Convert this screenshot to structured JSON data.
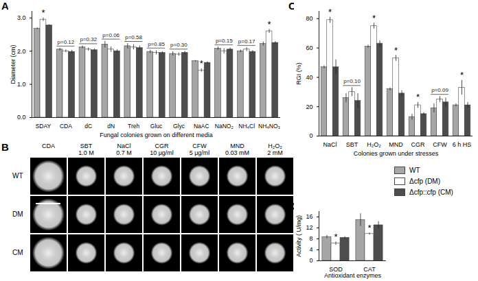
{
  "chart_data": [
    {
      "panel": "A",
      "type": "bar",
      "xlabel": "Fungal colonies grown on different media",
      "ylabel": "Diameter (cm)",
      "categories": [
        "SDAY",
        "CDA",
        "dC",
        "dN",
        "Treh",
        "Gluc",
        "Glyc",
        "NaAC",
        "NaNO₂",
        "NH₄Cl",
        "NH₄NO₃"
      ],
      "series": [
        {
          "name": "WT",
          "color": "#a6a6a6",
          "values": [
            2.68,
            2.05,
            2.12,
            2.2,
            2.15,
            1.98,
            1.92,
            1.7,
            2.08,
            2.0,
            2.22
          ],
          "errors": [
            0.03,
            0.04,
            0.04,
            0.1,
            0.08,
            0.05,
            0.06,
            0.02,
            0.05,
            0.04,
            0.06
          ]
        },
        {
          "name": "Δcfp (DM)",
          "color": "#ffffff",
          "values": [
            2.95,
            2.0,
            2.05,
            2.05,
            2.12,
            1.95,
            1.9,
            1.42,
            2.0,
            2.05,
            2.6
          ],
          "errors": [
            0.05,
            0.04,
            0.05,
            0.08,
            0.08,
            0.06,
            0.05,
            0.05,
            0.08,
            0.06,
            0.06
          ]
        },
        {
          "name": "Δcfp::cfp (CM)",
          "color": "#4d4d4d",
          "values": [
            2.78,
            1.98,
            2.03,
            2.0,
            2.1,
            1.95,
            1.95,
            1.65,
            2.05,
            1.98,
            2.25
          ],
          "errors": [
            0.02,
            0.05,
            0.04,
            0.05,
            0.06,
            0.04,
            0.05,
            0.03,
            0.05,
            0.04,
            0.04
          ]
        }
      ],
      "ylim": [
        0,
        3.2
      ],
      "yticks": [
        0,
        1,
        2,
        3
      ],
      "annotations": [
        {
          "category": "SDAY",
          "series": "Δcfp (DM)",
          "text": "*"
        },
        {
          "category": "CDA",
          "text": "p=0.12"
        },
        {
          "category": "dC",
          "text": "p=0.32"
        },
        {
          "category": "dN",
          "text": "p=0.06"
        },
        {
          "category": "Treh",
          "text": "p=0.58"
        },
        {
          "category": "Gluc",
          "text": "p=0.85"
        },
        {
          "category": "Glyc",
          "text": "p=0.30"
        },
        {
          "category": "NaAC",
          "series": "Δcfp (DM)",
          "text": "*"
        },
        {
          "category": "NaNO₂",
          "text": "p=0.15"
        },
        {
          "category": "NH₄Cl",
          "text": "p=0.17"
        },
        {
          "category": "NH₄NO₃",
          "series": "Δcfp (DM)",
          "text": "*"
        }
      ]
    },
    {
      "panel": "B",
      "type": "image",
      "columns": [
        {
          "label": "CDA"
        },
        {
          "label": "SBT",
          "condition": "1.0 M"
        },
        {
          "label": "NaCl",
          "condition": "0.7 M"
        },
        {
          "label": "CGR",
          "condition": "10 μg/ml"
        },
        {
          "label": "CFW",
          "condition": "5 μg/ml"
        },
        {
          "label": "MND",
          "condition": "0.03 mM"
        },
        {
          "label": "H₂O₂",
          "condition": "2 mM"
        }
      ],
      "rows": [
        "WT",
        "DM",
        "CM"
      ]
    },
    {
      "panel": "C",
      "type": "bar",
      "xlabel": "Colonies grown under stresses",
      "ylabel": "RGI (%)",
      "categories": [
        "NaCl",
        "SBT",
        "H₂O₂",
        "MND",
        "CGR",
        "CFW",
        "6 h HS"
      ],
      "series": [
        {
          "name": "WT",
          "color": "#a6a6a6",
          "values": [
            47,
            26,
            61,
            32,
            13,
            19,
            21
          ],
          "errors": [
            1,
            3,
            1,
            1,
            2,
            3,
            1
          ]
        },
        {
          "name": "Δcfp (DM)",
          "color": "#ffffff",
          "values": [
            79,
            30,
            75,
            53,
            21,
            25,
            33
          ],
          "errors": [
            2,
            3,
            2,
            2,
            2,
            2,
            5
          ]
        },
        {
          "name": "Δcfp::cfp (CM)",
          "color": "#4d4d4d",
          "values": [
            47,
            24,
            63,
            29,
            15,
            23,
            21
          ],
          "errors": [
            5,
            5,
            2,
            2,
            1,
            3,
            2
          ]
        }
      ],
      "ylim": [
        0,
        85
      ],
      "yticks": [
        0,
        20,
        40,
        60,
        80
      ],
      "annotations": [
        {
          "category": "NaCl",
          "series": "Δcfp (DM)",
          "text": "*"
        },
        {
          "category": "SBT",
          "text": "p=0.10"
        },
        {
          "category": "H₂O₂",
          "series": "Δcfp (DM)",
          "text": "*"
        },
        {
          "category": "MND",
          "series": "Δcfp (DM)",
          "text": "*"
        },
        {
          "category": "CGR",
          "series": "Δcfp (DM)",
          "text": "*"
        },
        {
          "category": "CFW",
          "text": "p=0.09"
        },
        {
          "category": "6 h HS",
          "series": "Δcfp (DM)",
          "text": "*"
        }
      ]
    },
    {
      "panel": "D",
      "type": "bar",
      "xlabel": "Antioxidant enzymes",
      "ylabel": "Activity ( U/mg)",
      "categories": [
        "SOD",
        "CAT"
      ],
      "series": [
        {
          "name": "WT",
          "color": "#a6a6a6",
          "values": [
            8.7,
            14.9
          ],
          "errors": [
            0.6,
            2.3
          ]
        },
        {
          "name": "Δcfp (DM)",
          "color": "#ffffff",
          "values": [
            6.3,
            9.8
          ],
          "errors": [
            0.6,
            0.4
          ]
        },
        {
          "name": "Δcfp::cfp (CM)",
          "color": "#4d4d4d",
          "values": [
            8.4,
            13.0
          ],
          "errors": [
            0.4,
            1.3
          ]
        }
      ],
      "ylim": [
        0,
        18
      ],
      "yticks": [
        0,
        4,
        8,
        12,
        16
      ],
      "legend": "top",
      "annotations": [
        {
          "category": "SOD",
          "series": "Δcfp (DM)",
          "text": "*"
        },
        {
          "category": "CAT",
          "series": "Δcfp (DM)",
          "text": "*"
        }
      ]
    }
  ]
}
